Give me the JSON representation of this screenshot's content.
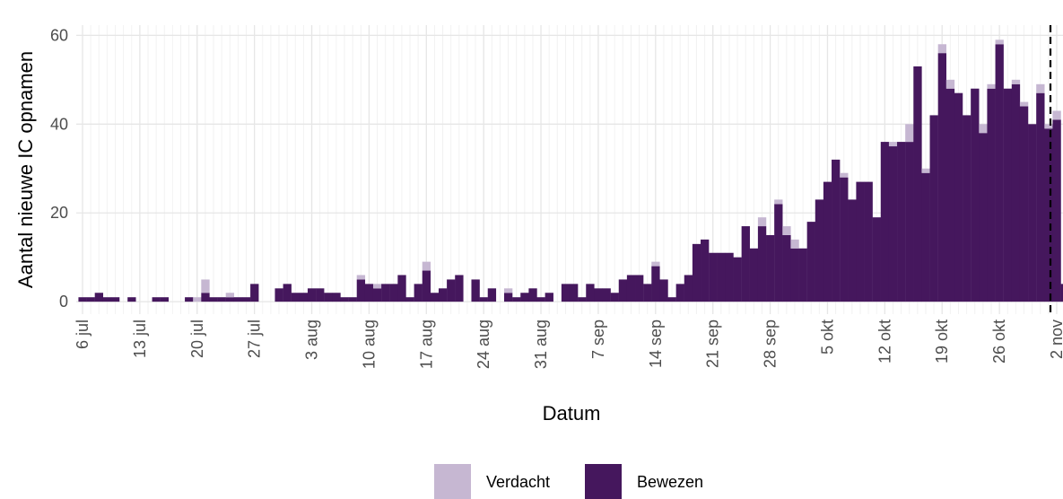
{
  "chart_data": {
    "type": "stacked_bar",
    "x_label": "Datum",
    "y_label": "Aantal nieuwe IC opnamen",
    "categories": [
      "6 jul",
      null,
      null,
      null,
      null,
      null,
      null,
      "13 jul",
      null,
      null,
      null,
      null,
      null,
      null,
      "20 jul",
      null,
      null,
      null,
      null,
      null,
      null,
      "27 jul",
      null,
      null,
      null,
      null,
      null,
      null,
      "3 aug",
      null,
      null,
      null,
      null,
      null,
      null,
      "10 aug",
      null,
      null,
      null,
      null,
      null,
      null,
      "17 aug",
      null,
      null,
      null,
      null,
      null,
      null,
      "24 aug",
      null,
      null,
      null,
      null,
      null,
      null,
      "31 aug",
      null,
      null,
      null,
      null,
      null,
      null,
      "7 sep",
      null,
      null,
      null,
      null,
      null,
      null,
      "14 sep",
      null,
      null,
      null,
      null,
      null,
      null,
      "21 sep",
      null,
      null,
      null,
      null,
      null,
      null,
      "28 sep",
      null,
      null,
      null,
      null,
      null,
      null,
      "5 okt",
      null,
      null,
      null,
      null,
      null,
      null,
      "12 okt",
      null,
      null,
      null,
      null,
      null,
      null,
      "19 okt",
      null,
      null,
      null,
      null,
      null,
      null,
      "26 okt",
      null,
      null,
      null,
      null,
      null,
      null,
      "2 nov",
      null
    ],
    "series": [
      {
        "name": "Bewezen",
        "color": "#45175d",
        "values": [
          1,
          1,
          2,
          1,
          1,
          0,
          1,
          0,
          0,
          1,
          1,
          0,
          0,
          1,
          0,
          2,
          1,
          1,
          1,
          1,
          1,
          4,
          0,
          0,
          3,
          4,
          2,
          2,
          3,
          3,
          2,
          2,
          1,
          1,
          5,
          4,
          3,
          4,
          4,
          6,
          1,
          4,
          7,
          2,
          3,
          5,
          6,
          0,
          5,
          1,
          3,
          0,
          2,
          1,
          2,
          3,
          1,
          2,
          0,
          4,
          4,
          1,
          4,
          3,
          3,
          2,
          5,
          6,
          6,
          4,
          8,
          5,
          1,
          4,
          6,
          13,
          14,
          11,
          11,
          11,
          10,
          17,
          12,
          17,
          15,
          22,
          15,
          12,
          12,
          18,
          23,
          27,
          32,
          28,
          23,
          27,
          27,
          19,
          36,
          35,
          36,
          36,
          53,
          29,
          42,
          56,
          48,
          47,
          42,
          48,
          38,
          48,
          58,
          48,
          49,
          44,
          40,
          47,
          39,
          41,
          4
        ]
      },
      {
        "name": "Verdacht",
        "color": "#c6b7d2",
        "values": [
          0,
          0,
          0,
          0,
          0,
          0,
          0,
          0,
          0,
          0,
          0,
          0,
          0,
          0,
          1,
          3,
          0,
          0,
          1,
          0,
          0,
          0,
          0,
          0,
          0,
          0,
          0,
          0,
          0,
          0,
          0,
          0,
          0,
          0,
          1,
          0,
          1,
          0,
          0,
          0,
          0,
          0,
          2,
          0,
          0,
          0,
          0,
          0,
          0,
          0,
          0,
          0,
          1,
          0,
          0,
          0,
          0,
          0,
          0,
          0,
          0,
          0,
          0,
          0,
          0,
          0,
          0,
          0,
          0,
          0,
          1,
          0,
          0,
          0,
          0,
          0,
          0,
          0,
          0,
          0,
          0,
          0,
          0,
          2,
          0,
          1,
          2,
          2,
          0,
          0,
          0,
          0,
          0,
          1,
          0,
          0,
          0,
          0,
          0,
          1,
          0,
          4,
          0,
          1,
          0,
          2,
          2,
          0,
          0,
          0,
          2,
          1,
          1,
          0,
          1,
          1,
          0,
          2,
          1,
          2,
          0
        ]
      }
    ],
    "ylim": [
      -2.8,
      62.3
    ],
    "yticks": [
      0,
      20,
      40,
      60
    ],
    "grid": true,
    "legend": "bottom"
  }
}
